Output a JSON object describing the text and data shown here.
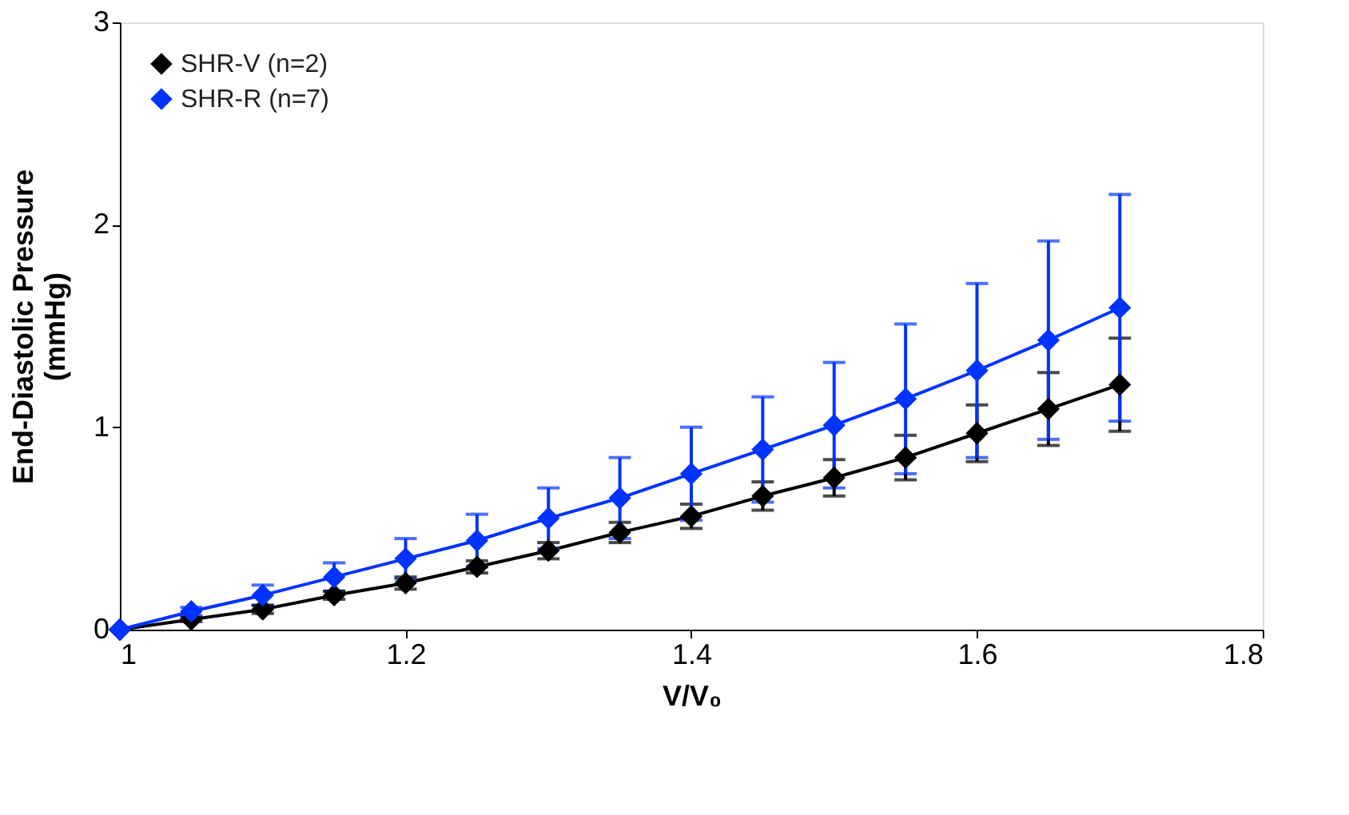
{
  "chart_data": {
    "type": "line",
    "xlabel": "V/V₀",
    "ylabel": "End-Diastolic Pressure\n(mmHg)",
    "x": [
      1.0,
      1.05,
      1.1,
      1.15,
      1.2,
      1.25,
      1.3,
      1.35,
      1.4,
      1.45,
      1.5,
      1.55,
      1.6,
      1.65,
      1.7
    ],
    "series": [
      {
        "name": "SHR-V (n=2)",
        "color": "#000000",
        "values": [
          0,
          0.05,
          0.1,
          0.17,
          0.23,
          0.31,
          0.39,
          0.48,
          0.56,
          0.66,
          0.75,
          0.85,
          0.97,
          1.09,
          1.21
        ],
        "errors": [
          null,
          0.01,
          0.02,
          0.02,
          0.03,
          0.03,
          0.04,
          0.05,
          0.06,
          0.07,
          0.09,
          0.11,
          0.14,
          0.18,
          0.23
        ]
      },
      {
        "name": "SHR-R (n=7)",
        "color": "#0033ff",
        "values": [
          0,
          0.09,
          0.17,
          0.26,
          0.35,
          0.44,
          0.55,
          0.65,
          0.77,
          0.89,
          1.01,
          1.14,
          1.28,
          1.43,
          1.59
        ],
        "errors": [
          null,
          0.02,
          0.05,
          0.07,
          0.1,
          0.13,
          0.15,
          0.2,
          0.23,
          0.26,
          0.31,
          0.37,
          0.43,
          0.49,
          0.56
        ]
      }
    ],
    "xlim": [
      1,
      1.8
    ],
    "xticks": [
      1,
      1.2,
      1.4,
      1.6,
      1.8
    ],
    "ylim": [
      0,
      3
    ],
    "yticks": [
      0,
      1,
      2,
      3
    ],
    "grid": false,
    "legend": "top left",
    "marker": "diamond",
    "line_style": "solid"
  }
}
